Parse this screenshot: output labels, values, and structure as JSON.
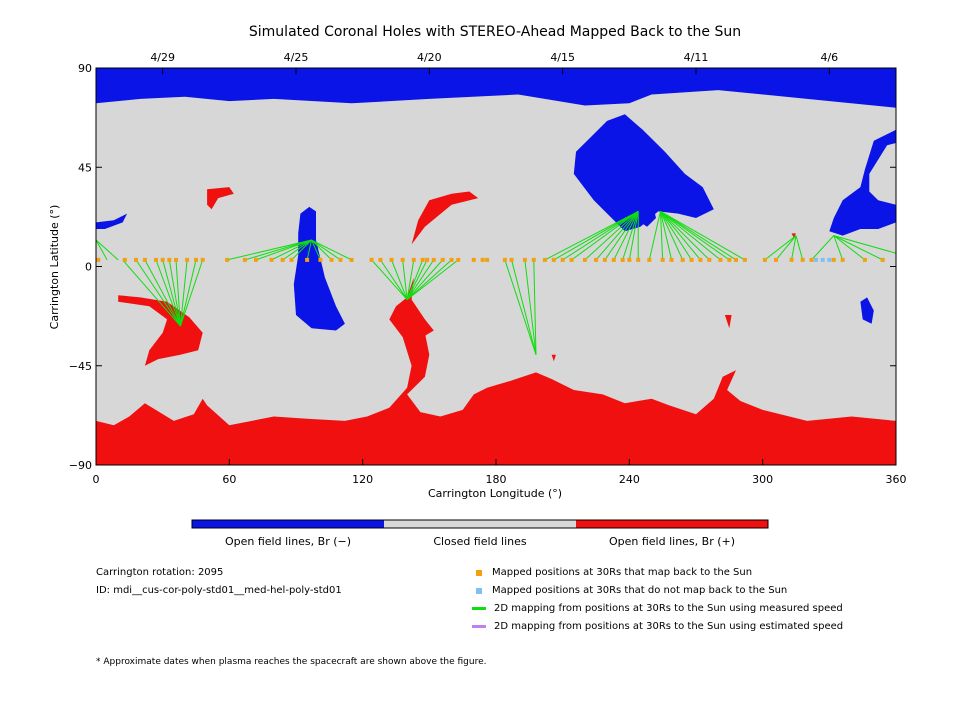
{
  "chart_data": {
    "type": "map",
    "title": "Simulated Coronal Holes with STEREO-Ahead Mapped Back to the Sun",
    "xlabel": "Carrington Longitude (°)",
    "ylabel": "Carrington Latitude (°)",
    "xlim": [
      0,
      360
    ],
    "ylim": [
      -90,
      90
    ],
    "x_ticks": [
      0,
      60,
      120,
      180,
      240,
      300,
      360
    ],
    "y_ticks": [
      -90,
      -45,
      0,
      45,
      90
    ],
    "x_tick_labels": [
      "0",
      "60",
      "120",
      "180",
      "240",
      "300",
      "360"
    ],
    "y_tick_labels": [
      "−90",
      "−45",
      "0",
      "45",
      "90"
    ],
    "top_date_ticks": [
      {
        "label": "4/29",
        "lon": 30
      },
      {
        "label": "4/25",
        "lon": 90
      },
      {
        "label": "4/20",
        "lon": 150
      },
      {
        "label": "4/15",
        "lon": 210
      },
      {
        "label": "4/11",
        "lon": 270
      },
      {
        "label": "4/6",
        "lon": 330
      }
    ],
    "colors": {
      "open_negative": "#0a14e6",
      "closed": "#d7d7d7",
      "open_positive": "#f01010",
      "mapped_points": "#f0a010",
      "unmapped_points": "#80c0f0",
      "measured_speed_line": "#10dd10",
      "estimated_speed_line": "#c080f0"
    },
    "colorbar_labels": [
      "Open field lines, Br (−)",
      "Closed field lines",
      "Open field lines, Br (+)"
    ],
    "regions": [
      {
        "polarity": "negative",
        "points": [
          [
            0,
            90
          ],
          [
            360,
            90
          ],
          [
            360,
            72
          ],
          [
            320,
            76
          ],
          [
            280,
            80
          ],
          [
            250,
            78
          ],
          [
            240,
            74
          ],
          [
            220,
            73
          ],
          [
            190,
            78
          ],
          [
            150,
            76
          ],
          [
            115,
            74
          ],
          [
            80,
            76
          ],
          [
            60,
            75
          ],
          [
            40,
            77
          ],
          [
            20,
            76
          ],
          [
            0,
            74
          ]
        ]
      },
      {
        "polarity": "negative",
        "points": [
          [
            0,
            20
          ],
          [
            8,
            21
          ],
          [
            14,
            24
          ],
          [
            12,
            20
          ],
          [
            4,
            17
          ],
          [
            0,
            17
          ]
        ]
      },
      {
        "polarity": "negative",
        "points": [
          [
            92,
            24
          ],
          [
            96,
            27
          ],
          [
            99,
            25
          ],
          [
            99,
            12
          ],
          [
            103,
            -5
          ],
          [
            108,
            -18
          ],
          [
            112,
            -26
          ],
          [
            108,
            -29
          ],
          [
            97,
            -28
          ],
          [
            90,
            -22
          ],
          [
            89,
            -8
          ],
          [
            91,
            5
          ],
          [
            91,
            15
          ]
        ]
      },
      {
        "polarity": "negative",
        "points": [
          [
            222,
            58
          ],
          [
            230,
            66
          ],
          [
            238,
            69
          ],
          [
            246,
            62
          ],
          [
            256,
            52
          ],
          [
            265,
            42
          ],
          [
            273,
            36
          ],
          [
            276,
            30
          ],
          [
            278,
            26
          ],
          [
            270,
            22
          ],
          [
            262,
            24
          ],
          [
            253,
            25
          ],
          [
            245,
            18
          ],
          [
            238,
            16
          ],
          [
            232,
            22
          ],
          [
            224,
            30
          ],
          [
            215,
            42
          ],
          [
            216,
            52
          ]
        ]
      },
      {
        "polarity": "negative",
        "points": [
          [
            242,
            22
          ],
          [
            248,
            18
          ],
          [
            252,
            22
          ],
          [
            250,
            30
          ],
          [
            244,
            32
          ],
          [
            240,
            27
          ]
        ]
      },
      {
        "polarity": "negative",
        "points": [
          [
            325,
            76
          ],
          [
            360,
            80
          ],
          [
            360,
            62
          ],
          [
            350,
            57
          ],
          [
            346,
            44
          ],
          [
            344,
            36
          ],
          [
            336,
            30
          ],
          [
            332,
            22
          ],
          [
            330,
            16
          ],
          [
            336,
            14
          ],
          [
            344,
            17
          ],
          [
            352,
            17
          ],
          [
            360,
            20
          ],
          [
            360,
            28
          ],
          [
            352,
            30
          ],
          [
            348,
            34
          ],
          [
            348,
            42
          ],
          [
            356,
            55
          ],
          [
            360,
            56
          ],
          [
            360,
            76
          ]
        ]
      },
      {
        "polarity": "negative",
        "points": [
          [
            344,
            -16
          ],
          [
            347,
            -14
          ],
          [
            350,
            -20
          ],
          [
            349,
            -26
          ],
          [
            345,
            -24
          ]
        ]
      },
      {
        "polarity": "positive",
        "points": [
          [
            0,
            -90
          ],
          [
            360,
            -90
          ],
          [
            360,
            -70
          ],
          [
            340,
            -68
          ],
          [
            320,
            -70
          ],
          [
            300,
            -65
          ],
          [
            290,
            -61
          ],
          [
            284,
            -56
          ],
          [
            288,
            -47
          ],
          [
            282,
            -50
          ],
          [
            278,
            -60
          ],
          [
            270,
            -67
          ],
          [
            258,
            -63
          ],
          [
            250,
            -60
          ],
          [
            238,
            -62
          ],
          [
            228,
            -58
          ],
          [
            215,
            -56
          ],
          [
            205,
            -51
          ],
          [
            198,
            -48
          ],
          [
            186,
            -52
          ],
          [
            176,
            -55
          ],
          [
            170,
            -58
          ],
          [
            165,
            -65
          ],
          [
            155,
            -68
          ],
          [
            146,
            -66
          ],
          [
            140,
            -58
          ],
          [
            148,
            -50
          ],
          [
            150,
            -40
          ],
          [
            148,
            -30
          ],
          [
            141,
            -23
          ],
          [
            135,
            -18
          ],
          [
            132,
            -24
          ],
          [
            138,
            -32
          ],
          [
            142,
            -45
          ],
          [
            140,
            -55
          ],
          [
            132,
            -64
          ],
          [
            122,
            -68
          ],
          [
            112,
            -70
          ],
          [
            95,
            -69
          ],
          [
            80,
            -68
          ],
          [
            60,
            -72
          ],
          [
            50,
            -63
          ],
          [
            48,
            -60
          ],
          [
            44,
            -67
          ],
          [
            35,
            -70
          ],
          [
            22,
            -62
          ],
          [
            15,
            -68
          ],
          [
            8,
            -72
          ],
          [
            0,
            -70
          ]
        ]
      },
      {
        "polarity": "positive",
        "points": [
          [
            10,
            -13
          ],
          [
            20,
            -14
          ],
          [
            32,
            -16
          ],
          [
            42,
            -23
          ],
          [
            48,
            -30
          ],
          [
            46,
            -38
          ],
          [
            38,
            -40
          ],
          [
            28,
            -42
          ],
          [
            22,
            -45
          ],
          [
            24,
            -38
          ],
          [
            30,
            -30
          ],
          [
            32,
            -24
          ],
          [
            24,
            -18
          ],
          [
            10,
            -16
          ]
        ]
      },
      {
        "polarity": "positive",
        "points": [
          [
            135,
            -18
          ],
          [
            140,
            -14
          ],
          [
            143,
            -5
          ],
          [
            142,
            -15
          ],
          [
            148,
            -24
          ],
          [
            152,
            -29
          ],
          [
            147,
            -32
          ],
          [
            138,
            -28
          ]
        ]
      },
      {
        "polarity": "positive",
        "points": [
          [
            50,
            35
          ],
          [
            60,
            36
          ],
          [
            62,
            33
          ],
          [
            55,
            31
          ],
          [
            52,
            26
          ],
          [
            50,
            28
          ]
        ]
      },
      {
        "polarity": "positive",
        "points": [
          [
            150,
            30
          ],
          [
            160,
            33
          ],
          [
            168,
            34
          ],
          [
            172,
            31
          ],
          [
            160,
            28
          ],
          [
            148,
            18
          ],
          [
            142,
            10
          ],
          [
            145,
            21
          ]
        ]
      },
      {
        "polarity": "positive",
        "points": [
          [
            313,
            15
          ],
          [
            315,
            15
          ],
          [
            314,
            13
          ]
        ]
      },
      {
        "polarity": "positive",
        "points": [
          [
            283,
            -22
          ],
          [
            286,
            -22
          ],
          [
            285,
            -28
          ]
        ]
      },
      {
        "polarity": "positive",
        "points": [
          [
            205,
            -40
          ],
          [
            207,
            -40
          ],
          [
            206,
            -43
          ]
        ]
      }
    ],
    "mapped_points_lon": [
      1,
      13,
      18,
      22,
      27,
      30,
      33,
      36,
      41,
      45,
      48,
      59,
      67,
      72,
      79,
      84,
      88,
      95,
      101,
      106,
      110,
      115,
      124,
      128,
      133,
      138,
      143,
      147,
      149,
      152,
      156,
      160,
      163,
      170,
      174,
      176,
      184,
      187,
      193,
      197,
      202,
      206,
      210,
      214,
      220,
      225,
      229,
      233,
      237,
      240,
      244,
      249,
      255,
      259,
      264,
      268,
      272,
      276,
      281,
      285,
      288,
      292,
      301,
      306,
      313,
      318,
      322,
      332,
      336,
      346,
      354
    ],
    "mapped_points_lat": 3,
    "unmapped_points_lon": [
      324,
      327,
      330
    ],
    "measured_speed_lines": [
      {
        "from": [
          0,
          12
        ],
        "to": [
          [
            5,
            3
          ],
          [
            10,
            3
          ]
        ]
      },
      {
        "from": [
          38,
          -27
        ],
        "to": [
          [
            12,
            3
          ],
          [
            18,
            3
          ],
          [
            22,
            3
          ],
          [
            27,
            3
          ],
          [
            30,
            3
          ],
          [
            33,
            3
          ],
          [
            36,
            3
          ],
          [
            41,
            3
          ],
          [
            45,
            3
          ],
          [
            48,
            3
          ]
        ]
      },
      {
        "from": [
          97,
          12
        ],
        "to": [
          [
            59,
            3
          ],
          [
            67,
            3
          ],
          [
            72,
            3
          ],
          [
            79,
            3
          ],
          [
            84,
            3
          ],
          [
            88,
            3
          ],
          [
            95,
            3
          ],
          [
            101,
            3
          ],
          [
            106,
            3
          ],
          [
            110,
            3
          ],
          [
            115,
            3
          ]
        ]
      },
      {
        "from": [
          140,
          -15
        ],
        "to": [
          [
            124,
            3
          ],
          [
            128,
            3
          ],
          [
            133,
            3
          ],
          [
            138,
            3
          ],
          [
            143,
            3
          ],
          [
            147,
            3
          ],
          [
            149,
            3
          ],
          [
            152,
            3
          ],
          [
            156,
            3
          ],
          [
            160,
            3
          ],
          [
            163,
            3
          ]
        ]
      },
      {
        "from": [
          198,
          -40
        ],
        "to": [
          [
            184,
            3
          ],
          [
            187,
            3
          ],
          [
            193,
            3
          ],
          [
            197,
            3
          ]
        ]
      },
      {
        "from": [
          244,
          25
        ],
        "to": [
          [
            202,
            3
          ],
          [
            206,
            3
          ],
          [
            210,
            3
          ],
          [
            214,
            3
          ],
          [
            220,
            3
          ],
          [
            225,
            3
          ],
          [
            229,
            3
          ],
          [
            233,
            3
          ],
          [
            237,
            3
          ],
          [
            240,
            3
          ],
          [
            244,
            3
          ]
        ]
      },
      {
        "from": [
          254,
          25
        ],
        "to": [
          [
            249,
            3
          ],
          [
            255,
            3
          ],
          [
            259,
            3
          ],
          [
            264,
            3
          ],
          [
            268,
            3
          ],
          [
            272,
            3
          ],
          [
            276,
            3
          ],
          [
            281,
            3
          ],
          [
            285,
            3
          ],
          [
            288,
            3
          ],
          [
            292,
            3
          ]
        ]
      },
      {
        "from": [
          315,
          14
        ],
        "to": [
          [
            301,
            3
          ],
          [
            306,
            3
          ],
          [
            313,
            3
          ],
          [
            318,
            3
          ]
        ]
      },
      {
        "from": [
          332,
          14
        ],
        "to": [
          [
            322,
            3
          ],
          [
            336,
            3
          ],
          [
            346,
            3
          ],
          [
            354,
            3
          ],
          [
            360,
            6
          ]
        ]
      }
    ]
  },
  "info": {
    "carrington_rotation": "Carrington rotation: 2095",
    "id": "ID: mdi__cus-cor-poly-std01__med-hel-poly-std01",
    "footnote": "* Approximate dates when plasma reaches the spacecraft are shown above the figure."
  },
  "legend": [
    {
      "kind": "square",
      "color": "#f0a010",
      "label": "Mapped positions at 30Rs that map back to the Sun"
    },
    {
      "kind": "square",
      "color": "#80c0f0",
      "label": "Mapped positions at 30Rs that do not map back to the Sun"
    },
    {
      "kind": "line",
      "color": "#10dd10",
      "label": "2D mapping from positions at 30Rs to the Sun using measured speed"
    },
    {
      "kind": "line",
      "color": "#c080f0",
      "label": "2D mapping from positions at 30Rs to the Sun using estimated speed"
    }
  ]
}
